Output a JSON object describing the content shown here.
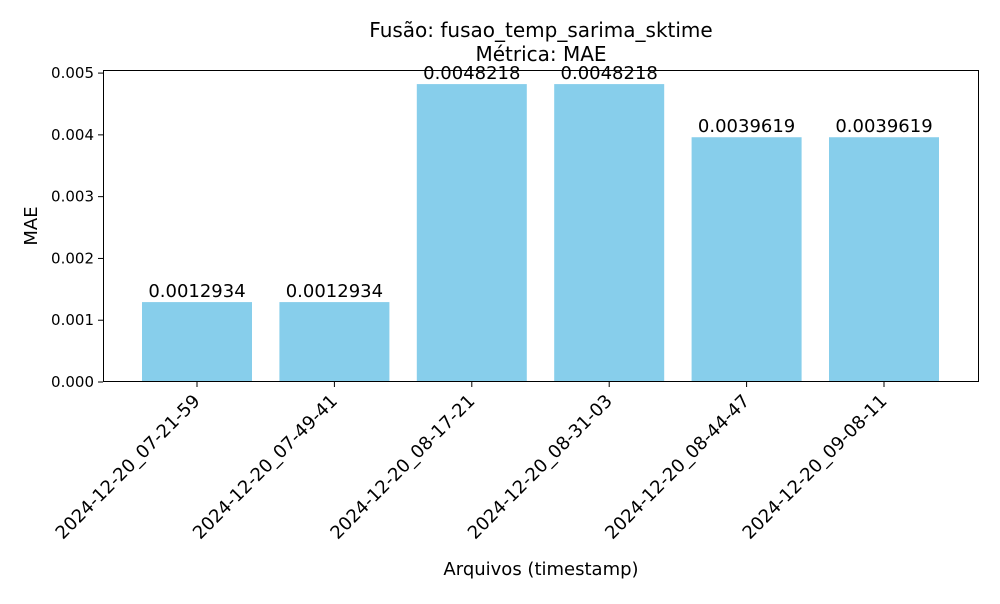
{
  "chart_data": {
    "type": "bar",
    "title": "Fusão: fusao_temp_sarima_sktime",
    "subtitle": "Métrica: MAE",
    "xlabel": "Arquivos (timestamp)",
    "ylabel": "MAE",
    "categories": [
      "2024-12-20_07-21-59",
      "2024-12-20_07-49-41",
      "2024-12-20_08-17-21",
      "2024-12-20_08-31-03",
      "2024-12-20_08-44-47",
      "2024-12-20_09-08-11"
    ],
    "values": [
      0.0012934,
      0.0012934,
      0.0048218,
      0.0048218,
      0.0039619,
      0.0039619
    ],
    "value_labels": [
      "0.0012934",
      "0.0012934",
      "0.0048218",
      "0.0048218",
      "0.0039619",
      "0.0039619"
    ],
    "ylim": [
      0,
      0.00505
    ],
    "yticks": [
      0.0,
      0.001,
      0.002,
      0.003,
      0.004,
      0.005
    ],
    "ytick_labels": [
      "0.000",
      "0.001",
      "0.002",
      "0.003",
      "0.004",
      "0.005"
    ],
    "bar_color": "#87ceeb",
    "grid": false,
    "legend": "none"
  }
}
